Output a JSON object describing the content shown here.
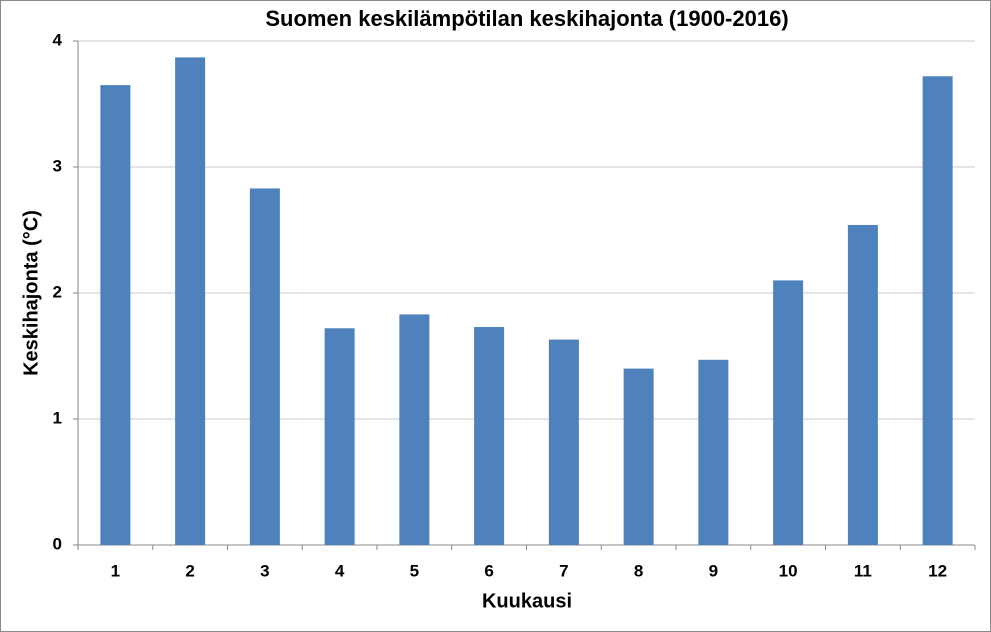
{
  "chart_data": {
    "type": "bar",
    "title": "Suomen keskilämpötilan keskihajonta (1900-2016)",
    "x_label": "Kuukausi",
    "y_label": "Keskihajonta (°C)",
    "categories": [
      "1",
      "2",
      "3",
      "4",
      "5",
      "6",
      "7",
      "8",
      "9",
      "10",
      "11",
      "12"
    ],
    "values": [
      3.65,
      3.87,
      2.83,
      1.72,
      1.83,
      1.73,
      1.63,
      1.4,
      1.47,
      2.1,
      2.54,
      3.72
    ],
    "color": "#4f81bd",
    "ylim": [
      0,
      4
    ],
    "yticks": [
      0,
      1,
      2,
      3,
      4
    ],
    "grid": true
  }
}
